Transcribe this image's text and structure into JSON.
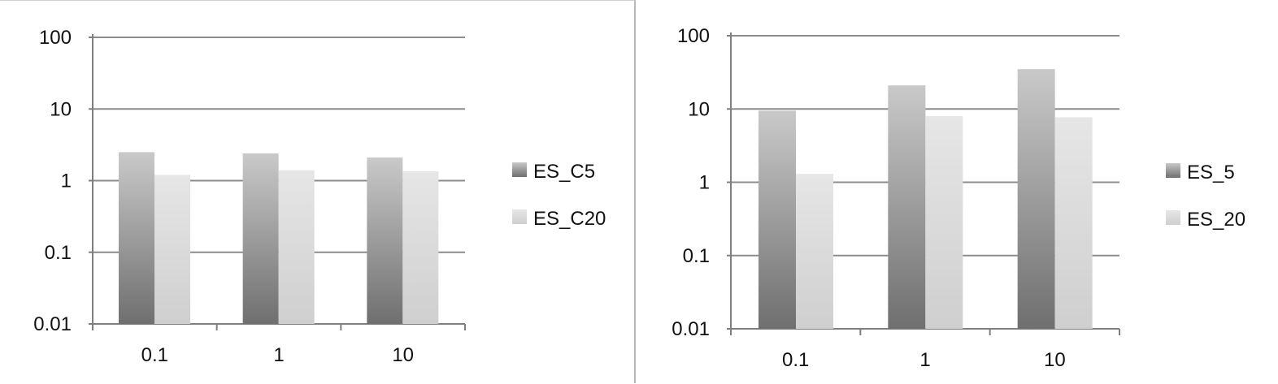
{
  "colors": {
    "series_dark_top": "#c9c9c9",
    "series_dark_bottom": "#6f6f6f",
    "series_light_top": "#e6e6e6",
    "series_light_bottom": "#cfcfcf",
    "axis": "#7f7f7f",
    "grid": "#8c8c8c"
  },
  "chart_data": [
    {
      "type": "bar",
      "scale": "log",
      "categories": [
        "0.1",
        "1",
        "10"
      ],
      "series": [
        {
          "name": "ES_C5",
          "values": [
            2.5,
            2.4,
            2.1
          ]
        },
        {
          "name": "ES_C20",
          "values": [
            1.2,
            1.4,
            1.35
          ]
        }
      ],
      "ylim": [
        0.01,
        100
      ],
      "yticks": [
        "100",
        "10",
        "1",
        "0.1",
        "0.01"
      ],
      "grid": true,
      "legend": "right"
    },
    {
      "type": "bar",
      "scale": "log",
      "categories": [
        "0.1",
        "1",
        "10"
      ],
      "series": [
        {
          "name": "ES_5",
          "values": [
            9.5,
            21,
            35
          ]
        },
        {
          "name": "ES_20",
          "values": [
            1.3,
            8,
            7.7
          ]
        }
      ],
      "ylim": [
        0.01,
        100
      ],
      "yticks": [
        "100",
        "10",
        "1",
        "0.1",
        "0.01"
      ],
      "grid": true,
      "legend": "right"
    }
  ]
}
